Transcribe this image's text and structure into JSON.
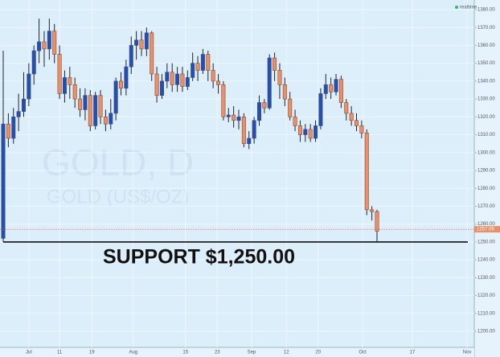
{
  "chart_data": {
    "type": "candlestick",
    "title": "GOLD, D",
    "subtitle": "GOLD (US$/OZ)",
    "status": "realtime",
    "up_color": "#2a4ea6",
    "down_color": "#e8906a",
    "status_color": "#3cb371",
    "support_color": "#111111",
    "last_color": "#e05050",
    "open": [
      1252,
      1316,
      1308,
      1320,
      1323,
      1330,
      1344,
      1357,
      1362,
      1358,
      1368,
      1355,
      1333,
      1342,
      1338,
      1330,
      1324,
      1332,
      1315,
      1332,
      1320,
      1316,
      1322,
      1340,
      1336,
      1348,
      1360,
      1363,
      1358,
      1367,
      1344,
      1332,
      1340,
      1345,
      1338,
      1344,
      1337,
      1342,
      1350,
      1346,
      1355,
      1346,
      1340,
      1338,
      1320,
      1321,
      1318,
      1320,
      1305,
      1308,
      1318,
      1328,
      1325,
      1353,
      1346,
      1338,
      1330,
      1320,
      1315,
      1310,
      1313,
      1308,
      1315,
      1333,
      1338,
      1334,
      1341,
      1328,
      1322,
      1318,
      1315,
      1311,
      1268,
      1267
    ],
    "high": [
      1357,
      1322,
      1325,
      1333,
      1345,
      1350,
      1360,
      1375,
      1368,
      1375,
      1372,
      1360,
      1346,
      1348,
      1342,
      1336,
      1336,
      1335,
      1334,
      1335,
      1324,
      1330,
      1342,
      1345,
      1352,
      1365,
      1368,
      1368,
      1370,
      1368,
      1348,
      1344,
      1350,
      1350,
      1348,
      1348,
      1346,
      1356,
      1354,
      1358,
      1357,
      1350,
      1344,
      1340,
      1325,
      1326,
      1324,
      1322,
      1312,
      1320,
      1332,
      1330,
      1355,
      1356,
      1350,
      1342,
      1334,
      1324,
      1318,
      1316,
      1316,
      1318,
      1336,
      1344,
      1342,
      1344,
      1343,
      1330,
      1326,
      1322,
      1318,
      1313,
      1270,
      1268
    ],
    "low": [
      1250,
      1303,
      1305,
      1312,
      1320,
      1326,
      1338,
      1350,
      1348,
      1352,
      1350,
      1330,
      1328,
      1330,
      1325,
      1320,
      1318,
      1312,
      1313,
      1316,
      1312,
      1313,
      1318,
      1332,
      1332,
      1344,
      1352,
      1354,
      1354,
      1340,
      1328,
      1330,
      1336,
      1334,
      1334,
      1334,
      1335,
      1340,
      1340,
      1344,
      1340,
      1336,
      1333,
      1318,
      1317,
      1314,
      1313,
      1303,
      1302,
      1305,
      1315,
      1322,
      1324,
      1340,
      1330,
      1326,
      1318,
      1312,
      1306,
      1306,
      1306,
      1306,
      1313,
      1330,
      1330,
      1332,
      1325,
      1318,
      1315,
      1312,
      1308,
      1265,
      1262,
      1250
    ],
    "close": [
      1316,
      1308,
      1320,
      1323,
      1330,
      1344,
      1357,
      1362,
      1358,
      1368,
      1355,
      1333,
      1342,
      1338,
      1330,
      1324,
      1332,
      1315,
      1332,
      1320,
      1316,
      1322,
      1340,
      1336,
      1348,
      1360,
      1363,
      1358,
      1367,
      1344,
      1332,
      1340,
      1345,
      1338,
      1344,
      1337,
      1342,
      1350,
      1346,
      1355,
      1346,
      1340,
      1338,
      1320,
      1321,
      1318,
      1320,
      1305,
      1308,
      1318,
      1328,
      1325,
      1353,
      1346,
      1338,
      1330,
      1320,
      1315,
      1310,
      1313,
      1308,
      1315,
      1333,
      1338,
      1334,
      1341,
      1328,
      1322,
      1318,
      1315,
      1311,
      1268,
      1267,
      1256
    ],
    "xlim": [
      -0.63,
      92.0
    ],
    "xticks": [
      {
        "value": 5.0,
        "label": "Jul"
      },
      {
        "value": 11.0,
        "label": "11"
      },
      {
        "value": 17.3,
        "label": "19"
      },
      {
        "value": 25.4,
        "label": "Aug"
      },
      {
        "value": 35.6,
        "label": "15"
      },
      {
        "value": 41.8,
        "label": "23"
      },
      {
        "value": 48.5,
        "label": "Sep"
      },
      {
        "value": 55.3,
        "label": "12"
      },
      {
        "value": 61.5,
        "label": "20"
      },
      {
        "value": 70.2,
        "label": "Oct"
      },
      {
        "value": 79.9,
        "label": "17"
      },
      {
        "value": 90.6,
        "label": "Nov"
      }
    ],
    "ylim": [
      1191,
      1385.4
    ],
    "yticks": [
      {
        "value": 1200,
        "label": "1200.00"
      },
      {
        "value": 1210,
        "label": "1210.00"
      },
      {
        "value": 1220,
        "label": "1220.00"
      },
      {
        "value": 1230,
        "label": "1230.00"
      },
      {
        "value": 1240,
        "label": "1240.00"
      },
      {
        "value": 1250,
        "label": "1250.00"
      },
      {
        "value": 1260,
        "label": "1260.00"
      },
      {
        "value": 1270,
        "label": "1270.00"
      },
      {
        "value": 1280,
        "label": "1280.00"
      },
      {
        "value": 1290,
        "label": "1290.00"
      },
      {
        "value": 1300,
        "label": "1300.00"
      },
      {
        "value": 1310,
        "label": "1310.00"
      },
      {
        "value": 1320,
        "label": "1320.00"
      },
      {
        "value": 1330,
        "label": "1330.00"
      },
      {
        "value": 1340,
        "label": "1340.00"
      },
      {
        "value": 1350,
        "label": "1350.00"
      },
      {
        "value": 1360,
        "label": "1360.00"
      },
      {
        "value": 1370,
        "label": "1370.00"
      },
      {
        "value": 1380,
        "label": "1380.00"
      }
    ],
    "last_price": 1257.09,
    "support": {
      "value": 1250,
      "label": "SUPPORT $1,250.00"
    },
    "grid": true
  }
}
